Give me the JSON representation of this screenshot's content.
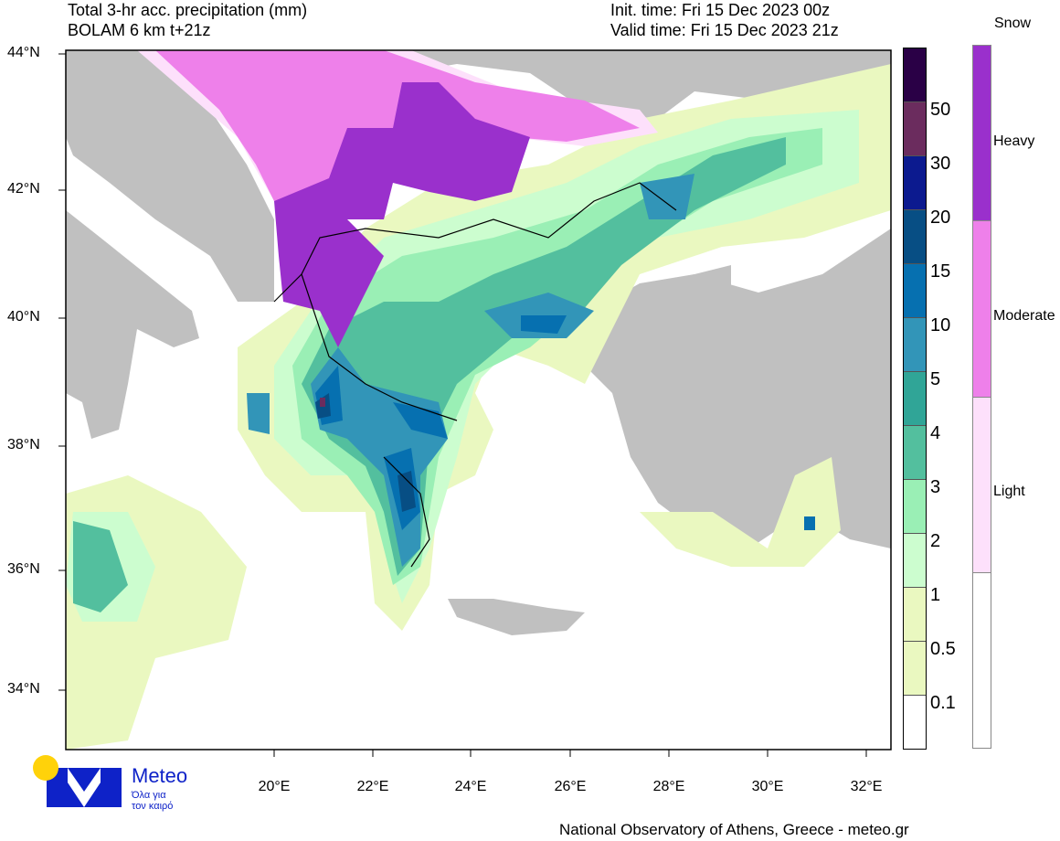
{
  "header": {
    "title_line1": "Total 3-hr acc. precipitation (mm)",
    "title_line2": "BOLAM 6 km t+21z",
    "init_time": "Init. time: Fri 15 Dec 2023 00z",
    "valid_time": "Valid time: Fri 15 Dec 2023 21z"
  },
  "map": {
    "lat_labels": [
      "44°N",
      "42°N",
      "40°N",
      "38°N",
      "36°N",
      "34°N"
    ],
    "lon_labels": [
      "20°E",
      "22°E",
      "24°E",
      "26°E",
      "28°E",
      "30°E",
      "32°E"
    ],
    "land_color": "#c0c0c0",
    "sea_color": "#ffffff"
  },
  "precip_colorbar": {
    "levels": [
      "50",
      "30",
      "20",
      "15",
      "10",
      "5",
      "4",
      "3",
      "2",
      "1",
      "0.5",
      "0.1"
    ],
    "colors": [
      "#2a0046",
      "#6b2c5e",
      "#0c1a8f",
      "#074e84",
      "#0670b0",
      "#3295b8",
      "#30a597",
      "#53bf9e",
      "#9aefb5",
      "#ccfdcf",
      "#eaf8c0",
      "#eaf8c0",
      "#ffffff"
    ]
  },
  "snow_colorbar": {
    "title": "Snow",
    "levels": [
      "Heavy",
      "Moderate",
      "Light"
    ],
    "colors": [
      "#9a30cc",
      "#ee80ea",
      "#fde0fb",
      "#ffffff"
    ]
  },
  "logo": {
    "name": "Meteo",
    "tagline_line1": "Όλα για",
    "tagline_line2": "τον καιρό",
    "colors": {
      "sun": "#ffd20a",
      "brand": "#0e22c8"
    }
  },
  "footer": {
    "credit": "National Observatory of Athens, Greece - meteo.gr"
  }
}
